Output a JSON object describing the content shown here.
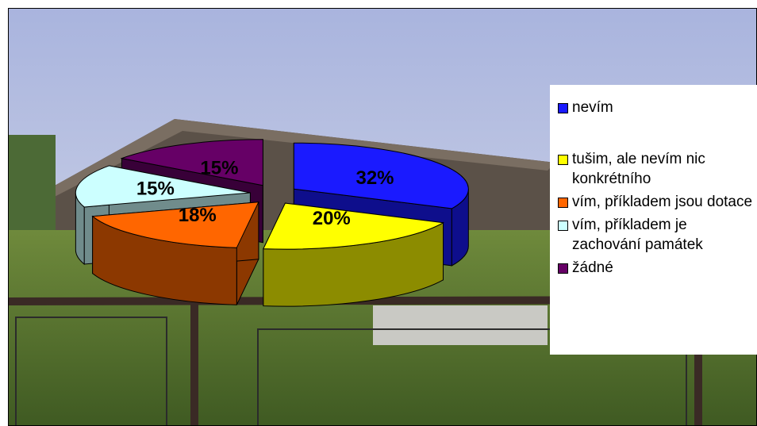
{
  "chart_data": {
    "type": "pie",
    "categories": [
      "nevím",
      "tušim, ale nevím nic konkrétního",
      "vím, příkladem jsou dotace",
      "vím, příkladem je zachování památek",
      "žádné"
    ],
    "values": [
      32,
      20,
      18,
      15,
      15
    ],
    "value_labels": [
      "32%",
      "20%",
      "18%",
      "15%",
      "15%"
    ],
    "colors": [
      "#1a1aff",
      "#ffff00",
      "#ff6600",
      "#ccffff",
      "#660066"
    ],
    "legend": "right"
  }
}
